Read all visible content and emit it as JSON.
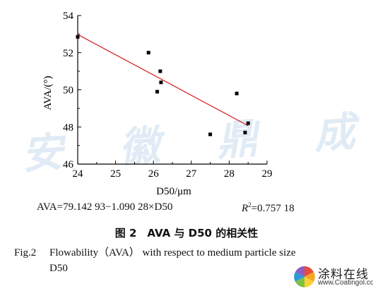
{
  "watermark": "安 徽 鼎 成",
  "chart_data": {
    "type": "scatter",
    "xlabel": "D50/μm",
    "ylabel": "AVA/(°)",
    "xlim": [
      24,
      29
    ],
    "ylim": [
      46,
      54
    ],
    "xticks": [
      24,
      25,
      26,
      27,
      28,
      29
    ],
    "yticks": [
      46,
      48,
      50,
      52,
      54
    ],
    "points": [
      {
        "x": 24.0,
        "y": 52.85
      },
      {
        "x": 25.87,
        "y": 52.0
      },
      {
        "x": 26.18,
        "y": 51.0
      },
      {
        "x": 26.2,
        "y": 50.4
      },
      {
        "x": 26.1,
        "y": 49.9
      },
      {
        "x": 28.2,
        "y": 49.8
      },
      {
        "x": 28.5,
        "y": 48.2
      },
      {
        "x": 27.5,
        "y": 47.6
      },
      {
        "x": 28.42,
        "y": 47.7
      }
    ],
    "fit": {
      "x": [
        24.0,
        28.5
      ],
      "slope": -1.09028,
      "intercept": 79.14293,
      "color": "#d92b2b"
    },
    "grid": false
  },
  "equation": {
    "fit": "AVA=79.142 93−1.090 28×D50",
    "r2_label": "R",
    "r2_sup": "2",
    "r2_value": "=0.757 18"
  },
  "caption": {
    "cn": "图 2　AVA 与 D50 的相关性",
    "en_fig": "Fig.2",
    "en_line1": "Flowability（AVA） with respect to medium particle size",
    "en_line2": "D50"
  },
  "logo": {
    "name": "涂料在线",
    "url": "www.Coatingol.com"
  }
}
